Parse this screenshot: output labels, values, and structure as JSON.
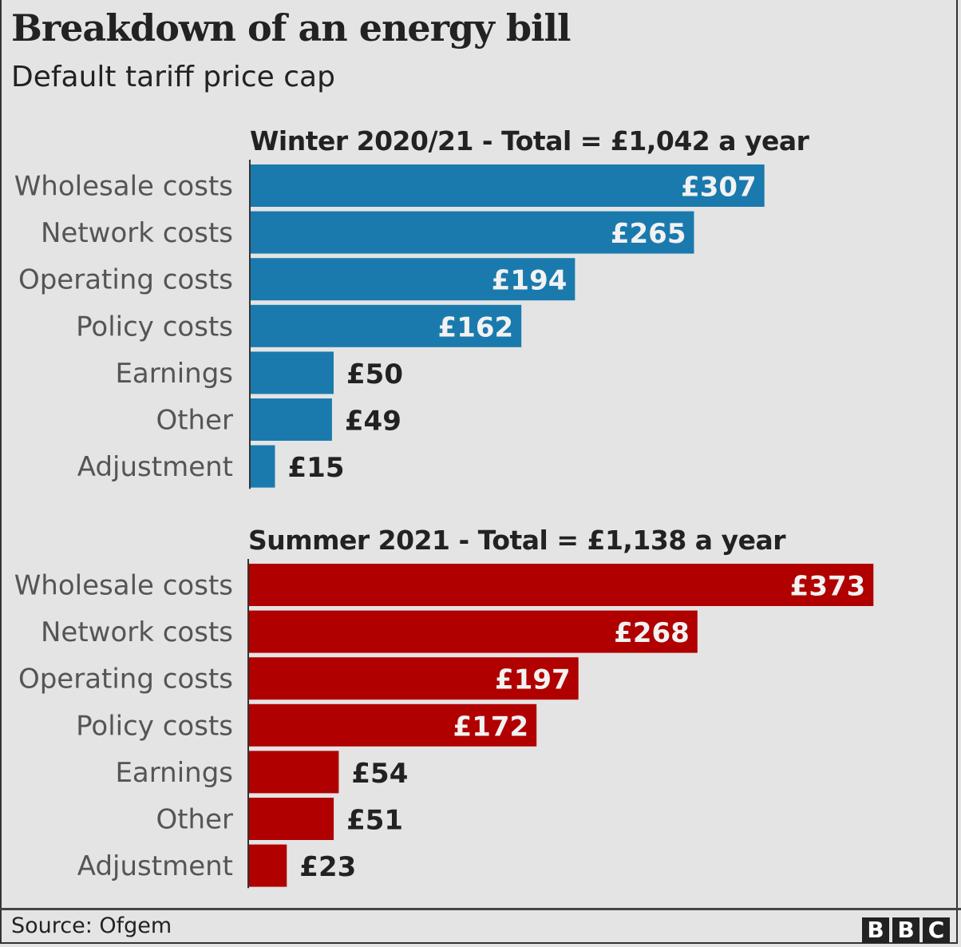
{
  "chart_data": [
    {
      "type": "bar",
      "orientation": "horizontal",
      "title": "Winter 2020/21 - Total = £1,042 a year",
      "categories": [
        "Wholesale costs",
        "Network costs",
        "Operating costs",
        "Policy costs",
        "Earnings",
        "Other",
        "Adjustment"
      ],
      "values": [
        307,
        265,
        194,
        162,
        50,
        49,
        15
      ],
      "labels": [
        "£307",
        "£265",
        "£194",
        "£162",
        "£50",
        "£49",
        "£15"
      ],
      "color": "#1a7aad",
      "unit": "£"
    },
    {
      "type": "bar",
      "orientation": "horizontal",
      "title": "Summer 2021 - Total = £1,138 a year",
      "categories": [
        "Wholesale costs",
        "Network costs",
        "Operating costs",
        "Policy costs",
        "Earnings",
        "Other",
        "Adjustment"
      ],
      "values": [
        373,
        268,
        197,
        172,
        54,
        51,
        23
      ],
      "labels": [
        "£373",
        "£268",
        "£197",
        "£172",
        "£54",
        "£51",
        "£23"
      ],
      "color": "#b00000",
      "unit": "£"
    }
  ],
  "header": {
    "title": "Breakdown of an energy bill",
    "subtitle": "Default tariff price cap"
  },
  "footer": {
    "source": "Source: Ofgem",
    "logo": [
      "B",
      "B",
      "C"
    ]
  }
}
